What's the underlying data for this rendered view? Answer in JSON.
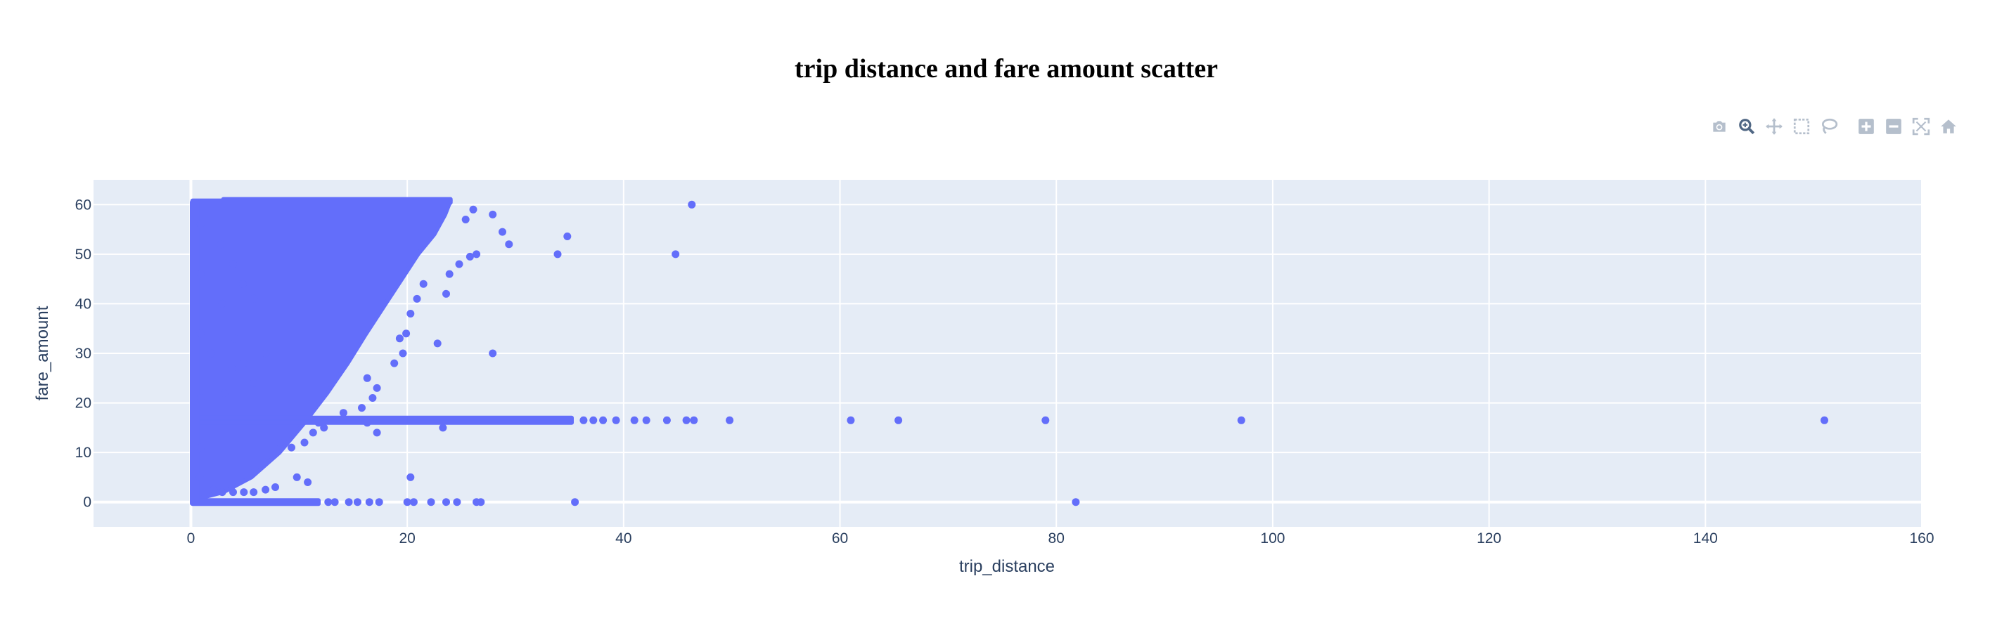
{
  "chart_data": {
    "type": "scatter",
    "title": "trip distance and fare amount scatter",
    "xlabel": "trip_distance",
    "ylabel": "fare_amount",
    "xlim": [
      -9,
      160
    ],
    "ylim": [
      -5,
      65
    ],
    "x_ticks": [
      0,
      20,
      40,
      60,
      80,
      100,
      120,
      140,
      160
    ],
    "y_ticks": [
      0,
      10,
      20,
      30,
      40,
      50,
      60
    ],
    "grid": true,
    "marker_color": "#636efa",
    "plot_background": "#e5ecf6",
    "points": [
      [
        46.3,
        60
      ],
      [
        34.8,
        53.6
      ],
      [
        33.9,
        50
      ],
      [
        44.8,
        50
      ],
      [
        29.4,
        52
      ],
      [
        28.8,
        54.5
      ],
      [
        27.9,
        58
      ],
      [
        26.1,
        59
      ],
      [
        25.4,
        57
      ],
      [
        26.4,
        50
      ],
      [
        25.8,
        49.5
      ],
      [
        24.8,
        48
      ],
      [
        23.9,
        46
      ],
      [
        23.6,
        42
      ],
      [
        22.8,
        32
      ],
      [
        27.9,
        30
      ],
      [
        21.5,
        44
      ],
      [
        20.9,
        41
      ],
      [
        20.3,
        38
      ],
      [
        19.9,
        34
      ],
      [
        19.6,
        30
      ],
      [
        19.3,
        33
      ],
      [
        18.8,
        28
      ],
      [
        17.2,
        23
      ],
      [
        16.8,
        21
      ],
      [
        16.3,
        25
      ],
      [
        15.8,
        19
      ],
      [
        14.1,
        18
      ],
      [
        12.3,
        15
      ],
      [
        11.8,
        16
      ],
      [
        11.3,
        14
      ],
      [
        17.2,
        14
      ],
      [
        16.3,
        16
      ],
      [
        23.3,
        15
      ],
      [
        20.3,
        5
      ],
      [
        9.8,
        5
      ],
      [
        10.8,
        4
      ],
      [
        7.8,
        3
      ],
      [
        6.9,
        2.5
      ],
      [
        5.8,
        2
      ],
      [
        4.9,
        2
      ],
      [
        3.9,
        2
      ],
      [
        2.9,
        2
      ],
      [
        2.1,
        2.5
      ],
      [
        0.8,
        5
      ],
      [
        0.9,
        11
      ],
      [
        0.9,
        21
      ],
      [
        0.9,
        34
      ],
      [
        0.9,
        46
      ],
      [
        0.9,
        56
      ],
      [
        2.8,
        52
      ],
      [
        3.9,
        48
      ],
      [
        4.8,
        44
      ],
      [
        5.8,
        41
      ],
      [
        2.9,
        40
      ],
      [
        4.1,
        33
      ],
      [
        1.9,
        30
      ],
      [
        3.1,
        22
      ],
      [
        4.9,
        28
      ],
      [
        3.8,
        27
      ],
      [
        6.9,
        30
      ],
      [
        5.8,
        24
      ],
      [
        8.2,
        12
      ],
      [
        9.3,
        11
      ],
      [
        10.5,
        12
      ],
      [
        6.8,
        8
      ],
      [
        5.9,
        7
      ],
      [
        36.3,
        16.5
      ],
      [
        37.2,
        16.5
      ],
      [
        38.1,
        16.5
      ],
      [
        39.3,
        16.5
      ],
      [
        41.0,
        16.5
      ],
      [
        42.1,
        16.5
      ],
      [
        44.0,
        16.5
      ],
      [
        45.8,
        16.5
      ],
      [
        46.5,
        16.5
      ],
      [
        49.8,
        16.5
      ],
      [
        61.0,
        16.5
      ],
      [
        65.4,
        16.5
      ],
      [
        79.0,
        16.5
      ],
      [
        97.1,
        16.5
      ],
      [
        151.0,
        16.5
      ],
      [
        35.5,
        0
      ],
      [
        81.8,
        0
      ],
      [
        26.8,
        0
      ],
      [
        26.4,
        0
      ],
      [
        24.6,
        0
      ],
      [
        23.6,
        0
      ],
      [
        22.2,
        0
      ],
      [
        20.6,
        0
      ],
      [
        20.0,
        0
      ],
      [
        17.4,
        0
      ],
      [
        16.5,
        0
      ],
      [
        15.4,
        0
      ],
      [
        14.6,
        0
      ],
      [
        13.3,
        0
      ],
      [
        12.7,
        0
      ]
    ],
    "clusters": [
      {
        "kind": "wedge",
        "polygon": [
          [
            0.15,
            0.5
          ],
          [
            0.15,
            60.8
          ],
          [
            5,
            60.8
          ],
          [
            9.5,
            60.8
          ],
          [
            24,
            60.8
          ],
          [
            23.5,
            58
          ],
          [
            22.5,
            54
          ],
          [
            21,
            50
          ],
          [
            19.5,
            45
          ],
          [
            18,
            40
          ],
          [
            16.2,
            34
          ],
          [
            14.5,
            28
          ],
          [
            12.6,
            22
          ],
          [
            10.5,
            16
          ],
          [
            8.2,
            10
          ],
          [
            5.6,
            5
          ],
          [
            3,
            2
          ],
          [
            1.2,
            1
          ]
        ]
      },
      {
        "kind": "band",
        "polygon": [
          [
            3.0,
            60.4
          ],
          [
            24.0,
            60.4
          ],
          [
            24.0,
            61.1
          ],
          [
            3.0,
            61.1
          ]
        ]
      },
      {
        "kind": "band",
        "polygon": [
          [
            0.3,
            16.0
          ],
          [
            35.2,
            16.0
          ],
          [
            35.2,
            17.0
          ],
          [
            0.3,
            17.0
          ]
        ]
      },
      {
        "kind": "band",
        "polygon": [
          [
            0.15,
            -0.35
          ],
          [
            11.8,
            -0.35
          ],
          [
            11.8,
            0.35
          ],
          [
            0.15,
            0.35
          ]
        ]
      },
      {
        "kind": "band",
        "polygon": [
          [
            0.1,
            -0.3
          ],
          [
            0.6,
            -0.3
          ],
          [
            0.6,
            60.5
          ],
          [
            0.1,
            60.5
          ]
        ]
      }
    ]
  },
  "modebar": {
    "buttons": [
      {
        "name": "camera-icon",
        "active": false
      },
      {
        "name": "zoom-icon",
        "active": true
      },
      {
        "name": "pan-icon",
        "active": false
      },
      {
        "name": "box-select-icon",
        "active": false
      },
      {
        "name": "lasso-select-icon",
        "active": false
      },
      {
        "name": "zoom-in-icon",
        "active": false
      },
      {
        "name": "zoom-out-icon",
        "active": false
      },
      {
        "name": "autoscale-icon",
        "active": false
      },
      {
        "name": "reset-axes-icon",
        "active": false
      }
    ]
  }
}
